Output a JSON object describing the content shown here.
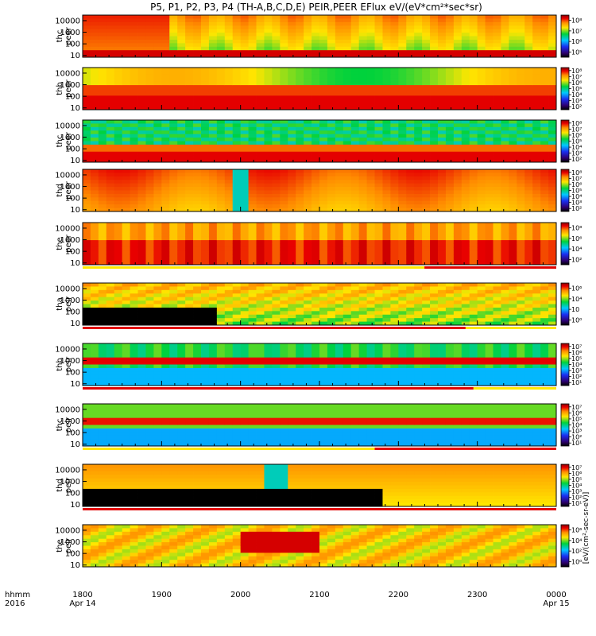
{
  "title": "P5, P1, P2, P3, P4 (TH-A,B,C,D,E) PEIR,PEER EFlux eV/(eV*cm²*sec*sr)",
  "colorbar_units": "[eV/(cm²-sec-sr-eV)]",
  "x_axis": {
    "corner_labels": [
      "hhmm",
      "2016"
    ],
    "ticks": [
      {
        "label": "1800",
        "sub": "Apr 14",
        "hour": 18
      },
      {
        "label": "1900",
        "sub": "",
        "hour": 19
      },
      {
        "label": "2000",
        "sub": "",
        "hour": 20
      },
      {
        "label": "2100",
        "sub": "",
        "hour": 21
      },
      {
        "label": "2200",
        "sub": "",
        "hour": 22
      },
      {
        "label": "2300",
        "sub": "",
        "hour": 23
      },
      {
        "label": "0000",
        "sub": "Apr 15",
        "hour": 24
      }
    ]
  },
  "chart_data": {
    "type": "heatmap",
    "x_range_hours": [
      18,
      24
    ],
    "y_scale": "log",
    "y_ticks": [
      "10",
      "100",
      "1000",
      "10000"
    ],
    "ylim_eV": [
      7,
      30000
    ],
    "colormap": [
      "#000000",
      "#2d0070",
      "#1a2ef0",
      "#00c8ff",
      "#00d23c",
      "#ffe600",
      "#ff8c00",
      "#e80000",
      "#8b0000"
    ],
    "panels": [
      {
        "probe": "thc",
        "species": "peer",
        "colorbar_ticks": [
          "10⁵",
          "10⁶",
          "10⁷",
          "10⁸"
        ],
        "mode_bar": null
      },
      {
        "probe": "thb",
        "species": "peer",
        "colorbar_ticks": [
          "10²",
          "10³",
          "10⁴",
          "10⁵",
          "10⁶",
          "10⁷",
          "10⁸"
        ],
        "mode_bar": null
      },
      {
        "probe": "thc",
        "species": "peer",
        "colorbar_ticks": [
          "10²",
          "10³",
          "10⁴",
          "10⁵",
          "10⁶",
          "10⁷",
          "10⁸"
        ],
        "mode_bar": null
      },
      {
        "probe": "thd",
        "species": "peer",
        "colorbar_ticks": [
          "10²",
          "10³",
          "10⁴",
          "10⁵",
          "10⁶",
          "10⁷",
          "10⁸"
        ],
        "mode_bar": null
      },
      {
        "probe": "the",
        "species": "peer",
        "colorbar_ticks": [
          "10²",
          "10⁴",
          "10⁶",
          "10⁸"
        ],
        "mode_bar": {
          "start_hour": 22.33,
          "end_hour": 24
        }
      },
      {
        "probe": "tha",
        "species": "peir",
        "colorbar_ticks": [
          "10⁰",
          "10⁲",
          "10⁴",
          "10⁶"
        ],
        "mode_bar": {
          "start_hour": 18,
          "end_hour": 22.85
        }
      },
      {
        "probe": "thb",
        "species": "peir",
        "colorbar_ticks": [
          "10¹",
          "10²",
          "10³",
          "10⁴",
          "10⁵",
          "10⁶",
          "10⁷"
        ],
        "mode_bar": {
          "start_hour": 18,
          "end_hour": 22.95
        }
      },
      {
        "probe": "thc",
        "species": "peir",
        "colorbar_ticks": [
          "10¹",
          "10²",
          "10³",
          "10⁴",
          "10⁵",
          "10⁶",
          "10⁷"
        ],
        "mode_bar": {
          "start_hour": 21.7,
          "end_hour": 24
        }
      },
      {
        "probe": "thd",
        "species": "peir",
        "colorbar_ticks": [
          "10¹",
          "10²",
          "10³",
          "10⁴",
          "10⁵",
          "10⁶",
          "10⁷"
        ],
        "mode_bar": {
          "start_hour": 18,
          "end_hour": 24
        }
      },
      {
        "probe": "the",
        "species": "peir",
        "colorbar_ticks": [
          "10⁰",
          "10²",
          "10⁴",
          "10⁶"
        ],
        "mode_bar": null
      }
    ]
  }
}
